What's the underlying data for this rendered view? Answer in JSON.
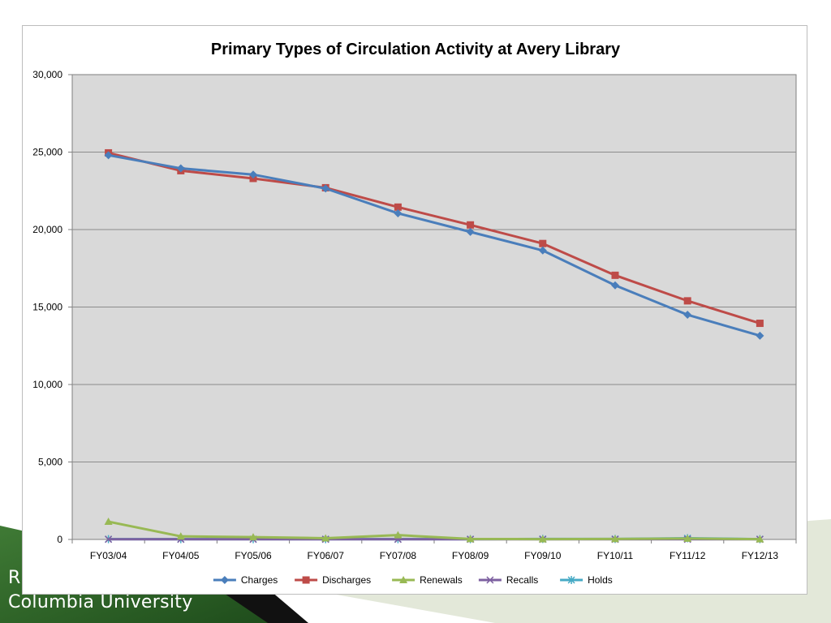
{
  "slide": {
    "footer_line1": "R",
    "footer_line2": "Columbia University"
  },
  "chart_data": {
    "type": "line",
    "title": "Primary Types of Circulation Activity at Avery Library",
    "xlabel": "",
    "ylabel": "",
    "ylim": [
      0,
      30000
    ],
    "yticks": [
      0,
      5000,
      10000,
      15000,
      20000,
      25000,
      30000
    ],
    "ytick_labels": [
      "0",
      "5,000",
      "10,000",
      "15,000",
      "20,000",
      "25,000",
      "30,000"
    ],
    "categories": [
      "FY03/04",
      "FY04/05",
      "FY05/06",
      "FY06/07",
      "FY07/08",
      "FY08/09",
      "FY09/10",
      "FY10/11",
      "FY11/12",
      "FY12/13"
    ],
    "grid": true,
    "legend_position": "bottom",
    "series": [
      {
        "name": "Charges",
        "color": "#4a7ebb",
        "marker": "diamond",
        "values": [
          24800,
          23950,
          23550,
          22650,
          21050,
          19850,
          18650,
          16400,
          14500,
          13150
        ]
      },
      {
        "name": "Discharges",
        "color": "#be4b48",
        "marker": "square",
        "values": [
          24950,
          23800,
          23300,
          22700,
          21450,
          20300,
          19100,
          17050,
          15400,
          13950
        ]
      },
      {
        "name": "Renewals",
        "color": "#98b954",
        "marker": "triangle",
        "values": [
          1150,
          200,
          150,
          80,
          280,
          30,
          20,
          30,
          60,
          20
        ]
      },
      {
        "name": "Recalls",
        "color": "#7d60a0",
        "marker": "x",
        "values": [
          10,
          10,
          10,
          10,
          10,
          10,
          10,
          10,
          10,
          10
        ]
      },
      {
        "name": "Holds",
        "color": "#46aac5",
        "marker": "star",
        "values": [
          20,
          20,
          20,
          20,
          20,
          20,
          30,
          30,
          80,
          20
        ]
      }
    ]
  }
}
